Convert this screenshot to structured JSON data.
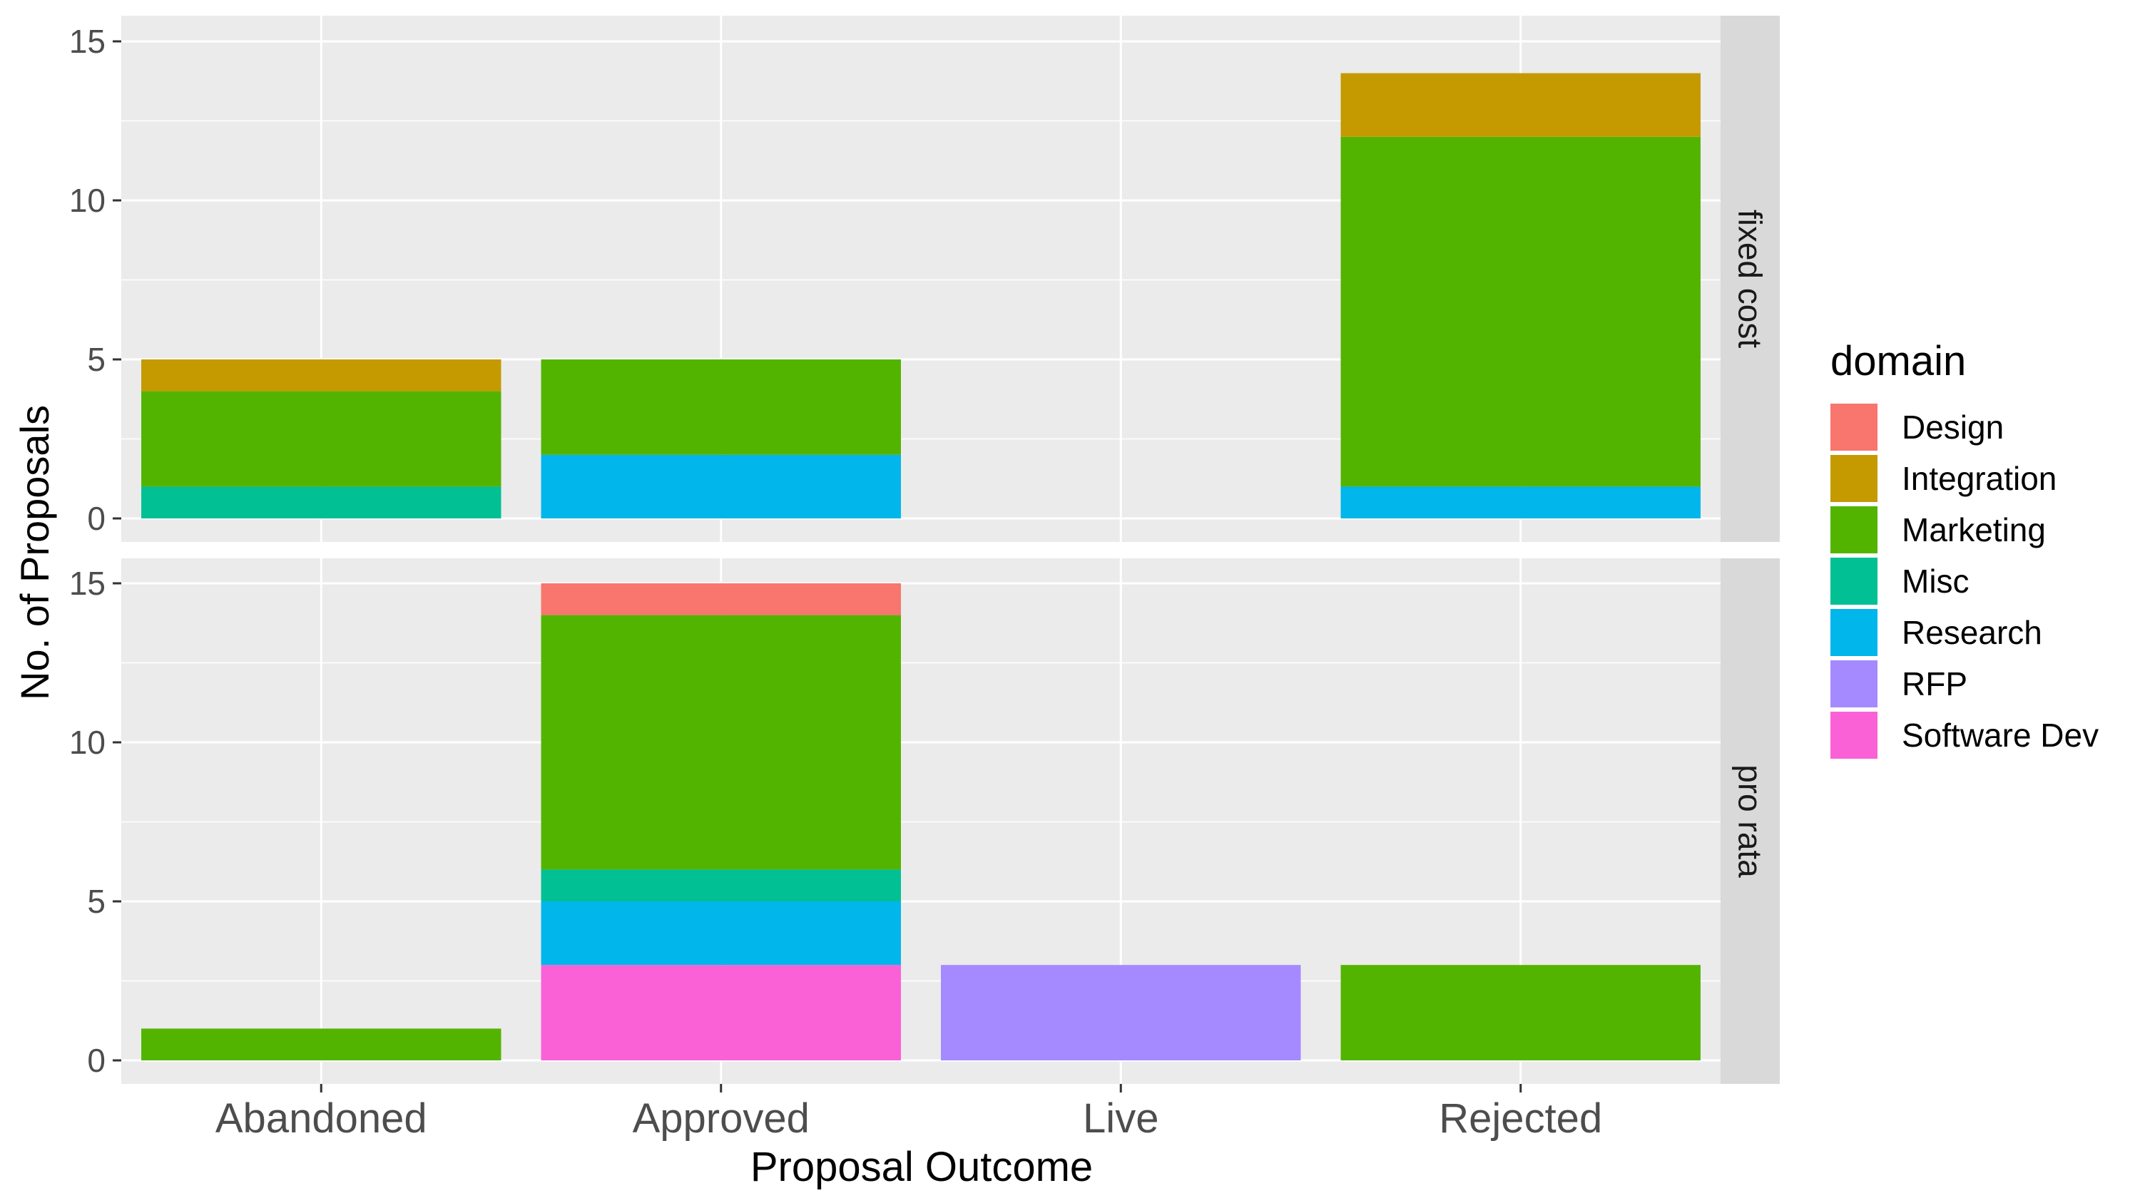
{
  "chart_data": {
    "type": "bar",
    "stacked": true,
    "facet_by": "pricing",
    "xlabel": "Proposal Outcome",
    "ylabel": "No. of Proposals",
    "ylim": [
      0,
      15
    ],
    "yticks": [
      0,
      5,
      10,
      15
    ],
    "grid": true,
    "legend": {
      "title": "domain",
      "position": "right"
    },
    "categories": [
      "Abandoned",
      "Approved",
      "Live",
      "Rejected"
    ],
    "domains": [
      {
        "name": "Design",
        "color": "#F8766D"
      },
      {
        "name": "Integration",
        "color": "#C49A00"
      },
      {
        "name": "Marketing",
        "color": "#53B400"
      },
      {
        "name": "Misc",
        "color": "#00C094"
      },
      {
        "name": "Research",
        "color": "#00B6EB"
      },
      {
        "name": "RFP",
        "color": "#A58AFF"
      },
      {
        "name": "Software Dev",
        "color": "#FB61D7"
      }
    ],
    "stack_order_bottom_to_top": [
      "Software Dev",
      "RFP",
      "Research",
      "Misc",
      "Marketing",
      "Integration",
      "Design"
    ],
    "panels": [
      {
        "label": "fixed cost",
        "series": [
          {
            "name": "Design",
            "values": [
              0,
              0,
              0,
              0
            ]
          },
          {
            "name": "Integration",
            "values": [
              1,
              0,
              0,
              2
            ]
          },
          {
            "name": "Marketing",
            "values": [
              3,
              3,
              0,
              11
            ]
          },
          {
            "name": "Misc",
            "values": [
              1,
              0,
              0,
              0
            ]
          },
          {
            "name": "Research",
            "values": [
              0,
              2,
              0,
              1
            ]
          },
          {
            "name": "RFP",
            "values": [
              0,
              0,
              0,
              0
            ]
          },
          {
            "name": "Software Dev",
            "values": [
              0,
              0,
              0,
              0
            ]
          }
        ]
      },
      {
        "label": "pro rata",
        "series": [
          {
            "name": "Design",
            "values": [
              0,
              1,
              0,
              0
            ]
          },
          {
            "name": "Integration",
            "values": [
              0,
              0,
              0,
              0
            ]
          },
          {
            "name": "Marketing",
            "values": [
              1,
              8,
              0,
              3
            ]
          },
          {
            "name": "Misc",
            "values": [
              0,
              1,
              0,
              0
            ]
          },
          {
            "name": "Research",
            "values": [
              0,
              2,
              0,
              0
            ]
          },
          {
            "name": "RFP",
            "values": [
              0,
              0,
              3,
              0
            ]
          },
          {
            "name": "Software Dev",
            "values": [
              0,
              3,
              0,
              0
            ]
          }
        ]
      }
    ]
  },
  "colors": {
    "panel_background": "#EBEBEB",
    "strip_background": "#D9D9D9",
    "grid": "#FFFFFF",
    "axis_text": "#4D4D4D",
    "title_text": "#000000"
  }
}
